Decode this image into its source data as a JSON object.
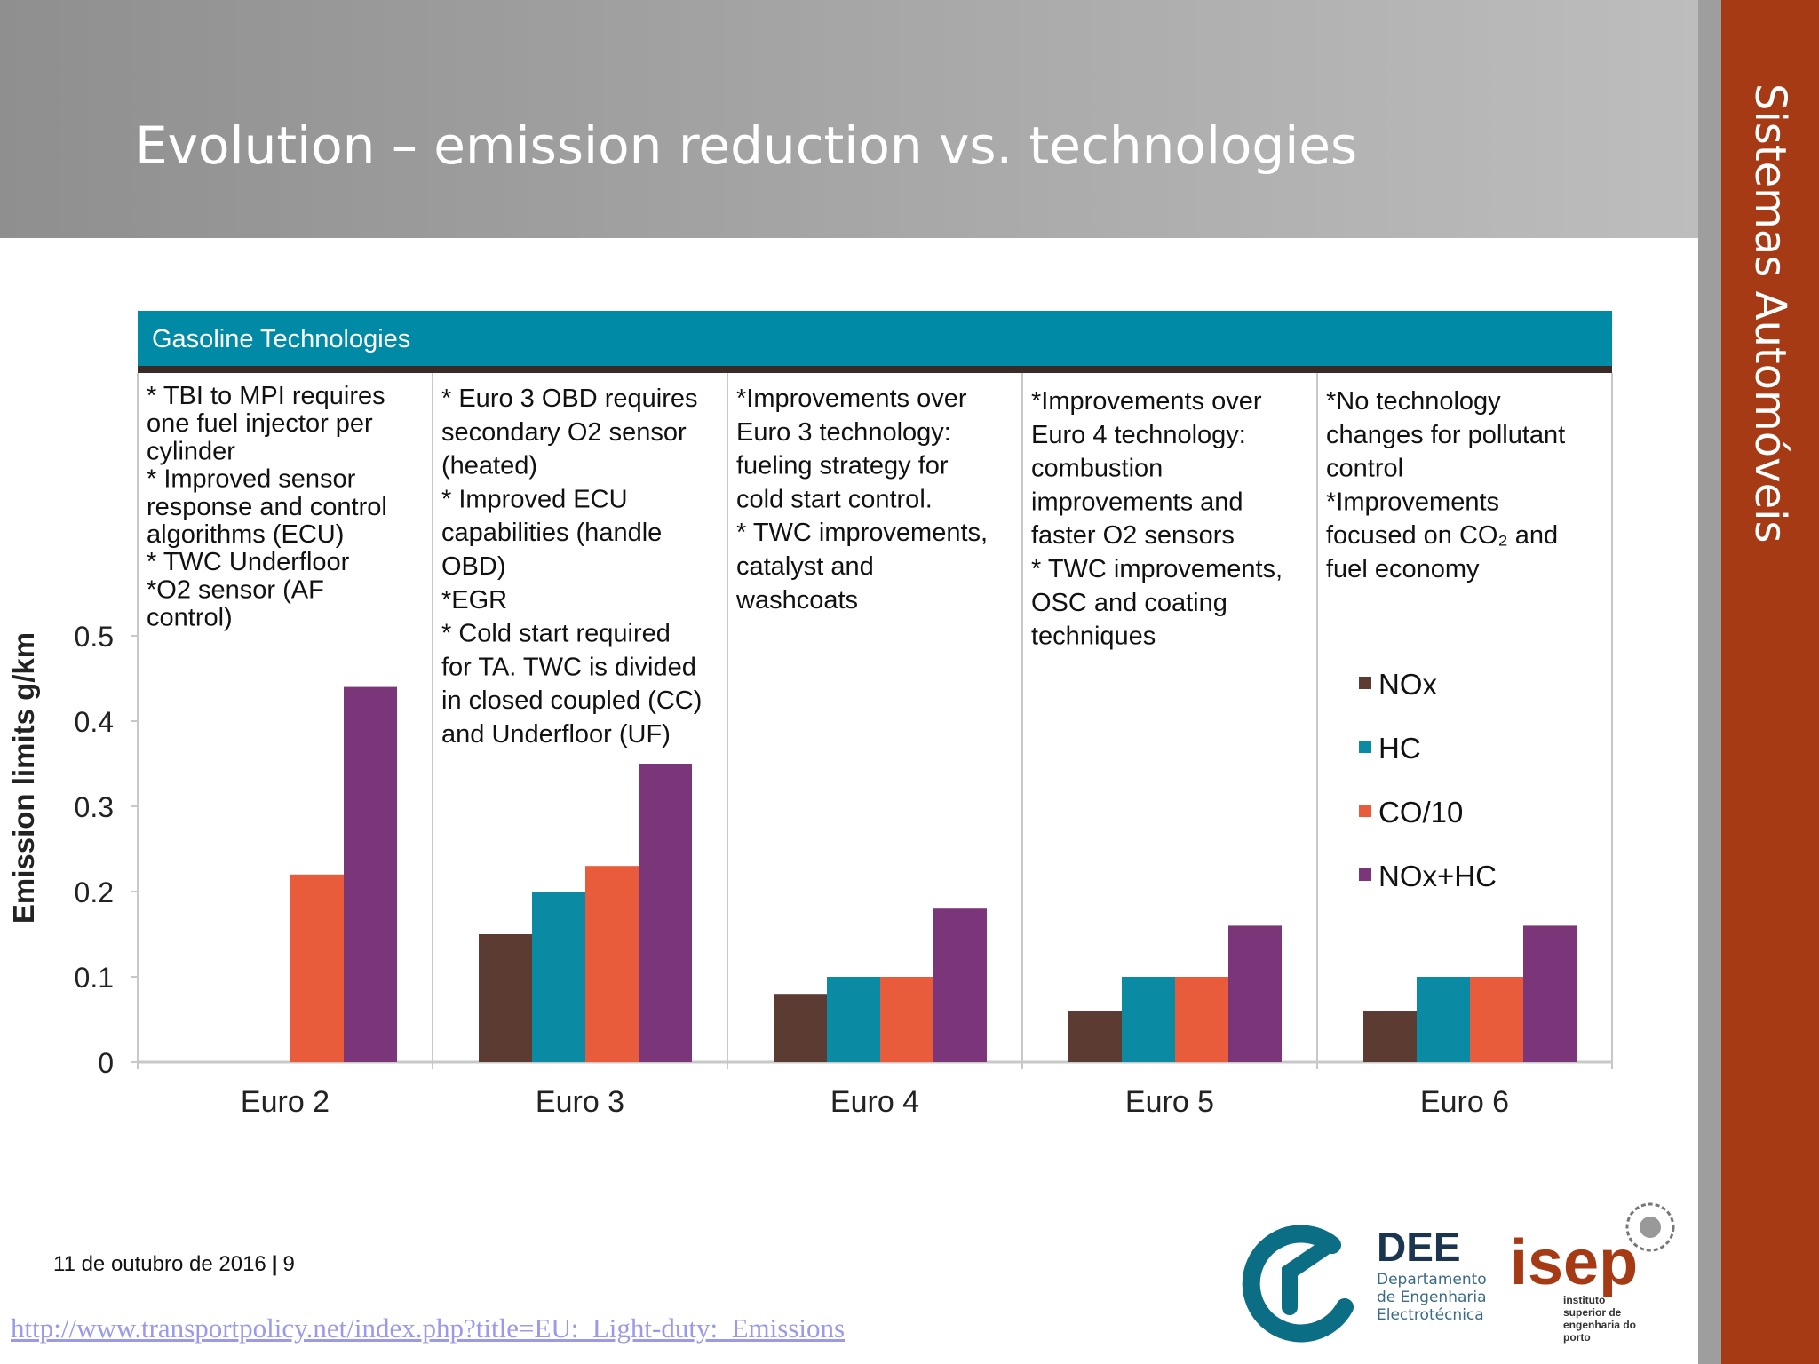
{
  "slide": {
    "title": "Evolution – emission reduction vs. technologies",
    "side_label": "Sistemas Automóveis",
    "footer_date": "11 de outubro de 2016",
    "page_number": "9",
    "source_url": "http://www.transportpolicy.net/index.php?title=EU:_Light-duty:_Emissions"
  },
  "logos": {
    "dee_name": "DEE",
    "dee_line1": "Departamento",
    "dee_line2": "de Engenharia",
    "dee_line3": "Electrotécnica",
    "isep_name": "isep",
    "isep_line1": "instituto",
    "isep_line2": "superior de",
    "isep_line3": "engenharia do",
    "isep_line4": "porto"
  },
  "chart_data": {
    "type": "bar",
    "banner": "Gasoline Technologies",
    "ylabel": "Emission limits g/km",
    "ylim": [
      0,
      0.5
    ],
    "yticks": [
      "0",
      "0.1",
      "0.2",
      "0.3",
      "0.4",
      "0.5"
    ],
    "categories": [
      "Euro 2",
      "Euro 3",
      "Euro 4",
      "Euro 5",
      "Euro 6"
    ],
    "series": [
      {
        "name": "NOx",
        "color": "#5b3b32",
        "values": [
          null,
          0.15,
          0.08,
          0.06,
          0.06
        ]
      },
      {
        "name": "HC",
        "color": "#0a8aa3",
        "values": [
          null,
          0.2,
          0.1,
          0.1,
          0.1
        ]
      },
      {
        "name": "CO/10",
        "color": "#e85c3c",
        "values": [
          0.22,
          0.23,
          0.1,
          0.1,
          0.1
        ]
      },
      {
        "name": "NOx+HC",
        "color": "#7b3679",
        "values": [
          0.44,
          0.35,
          0.18,
          0.16,
          0.16
        ]
      }
    ],
    "legend_position": "right",
    "annotations": [
      [
        "* TBI to MPI requires",
        "one fuel injector per",
        "cylinder",
        "* Improved sensor",
        "response and control",
        "algorithms (ECU)",
        "* TWC Underfloor",
        "*O2 sensor  (AF",
        "control)"
      ],
      [
        "* Euro 3 OBD requires",
        "secondary O2 sensor",
        "(heated)",
        "* Improved ECU",
        "capabilities (handle",
        "OBD)",
        "*EGR",
        "* Cold start required",
        "for TA. TWC is divided",
        "in closed coupled (CC)",
        "and Underfloor (UF)"
      ],
      [
        "*Improvements over",
        "Euro 3 technology:",
        "fueling strategy for",
        "cold start control.",
        "* TWC improvements,",
        "catalyst and",
        "washcoats"
      ],
      [
        "*Improvements over",
        "Euro 4 technology:",
        "combustion",
        "improvements and",
        "faster O2 sensors",
        "* TWC improvements,",
        "OSC and coating",
        "techniques"
      ],
      [
        "*No technology",
        "changes for pollutant",
        "control",
        "*Improvements",
        "focused on CO₂  and",
        "fuel economy"
      ]
    ]
  }
}
